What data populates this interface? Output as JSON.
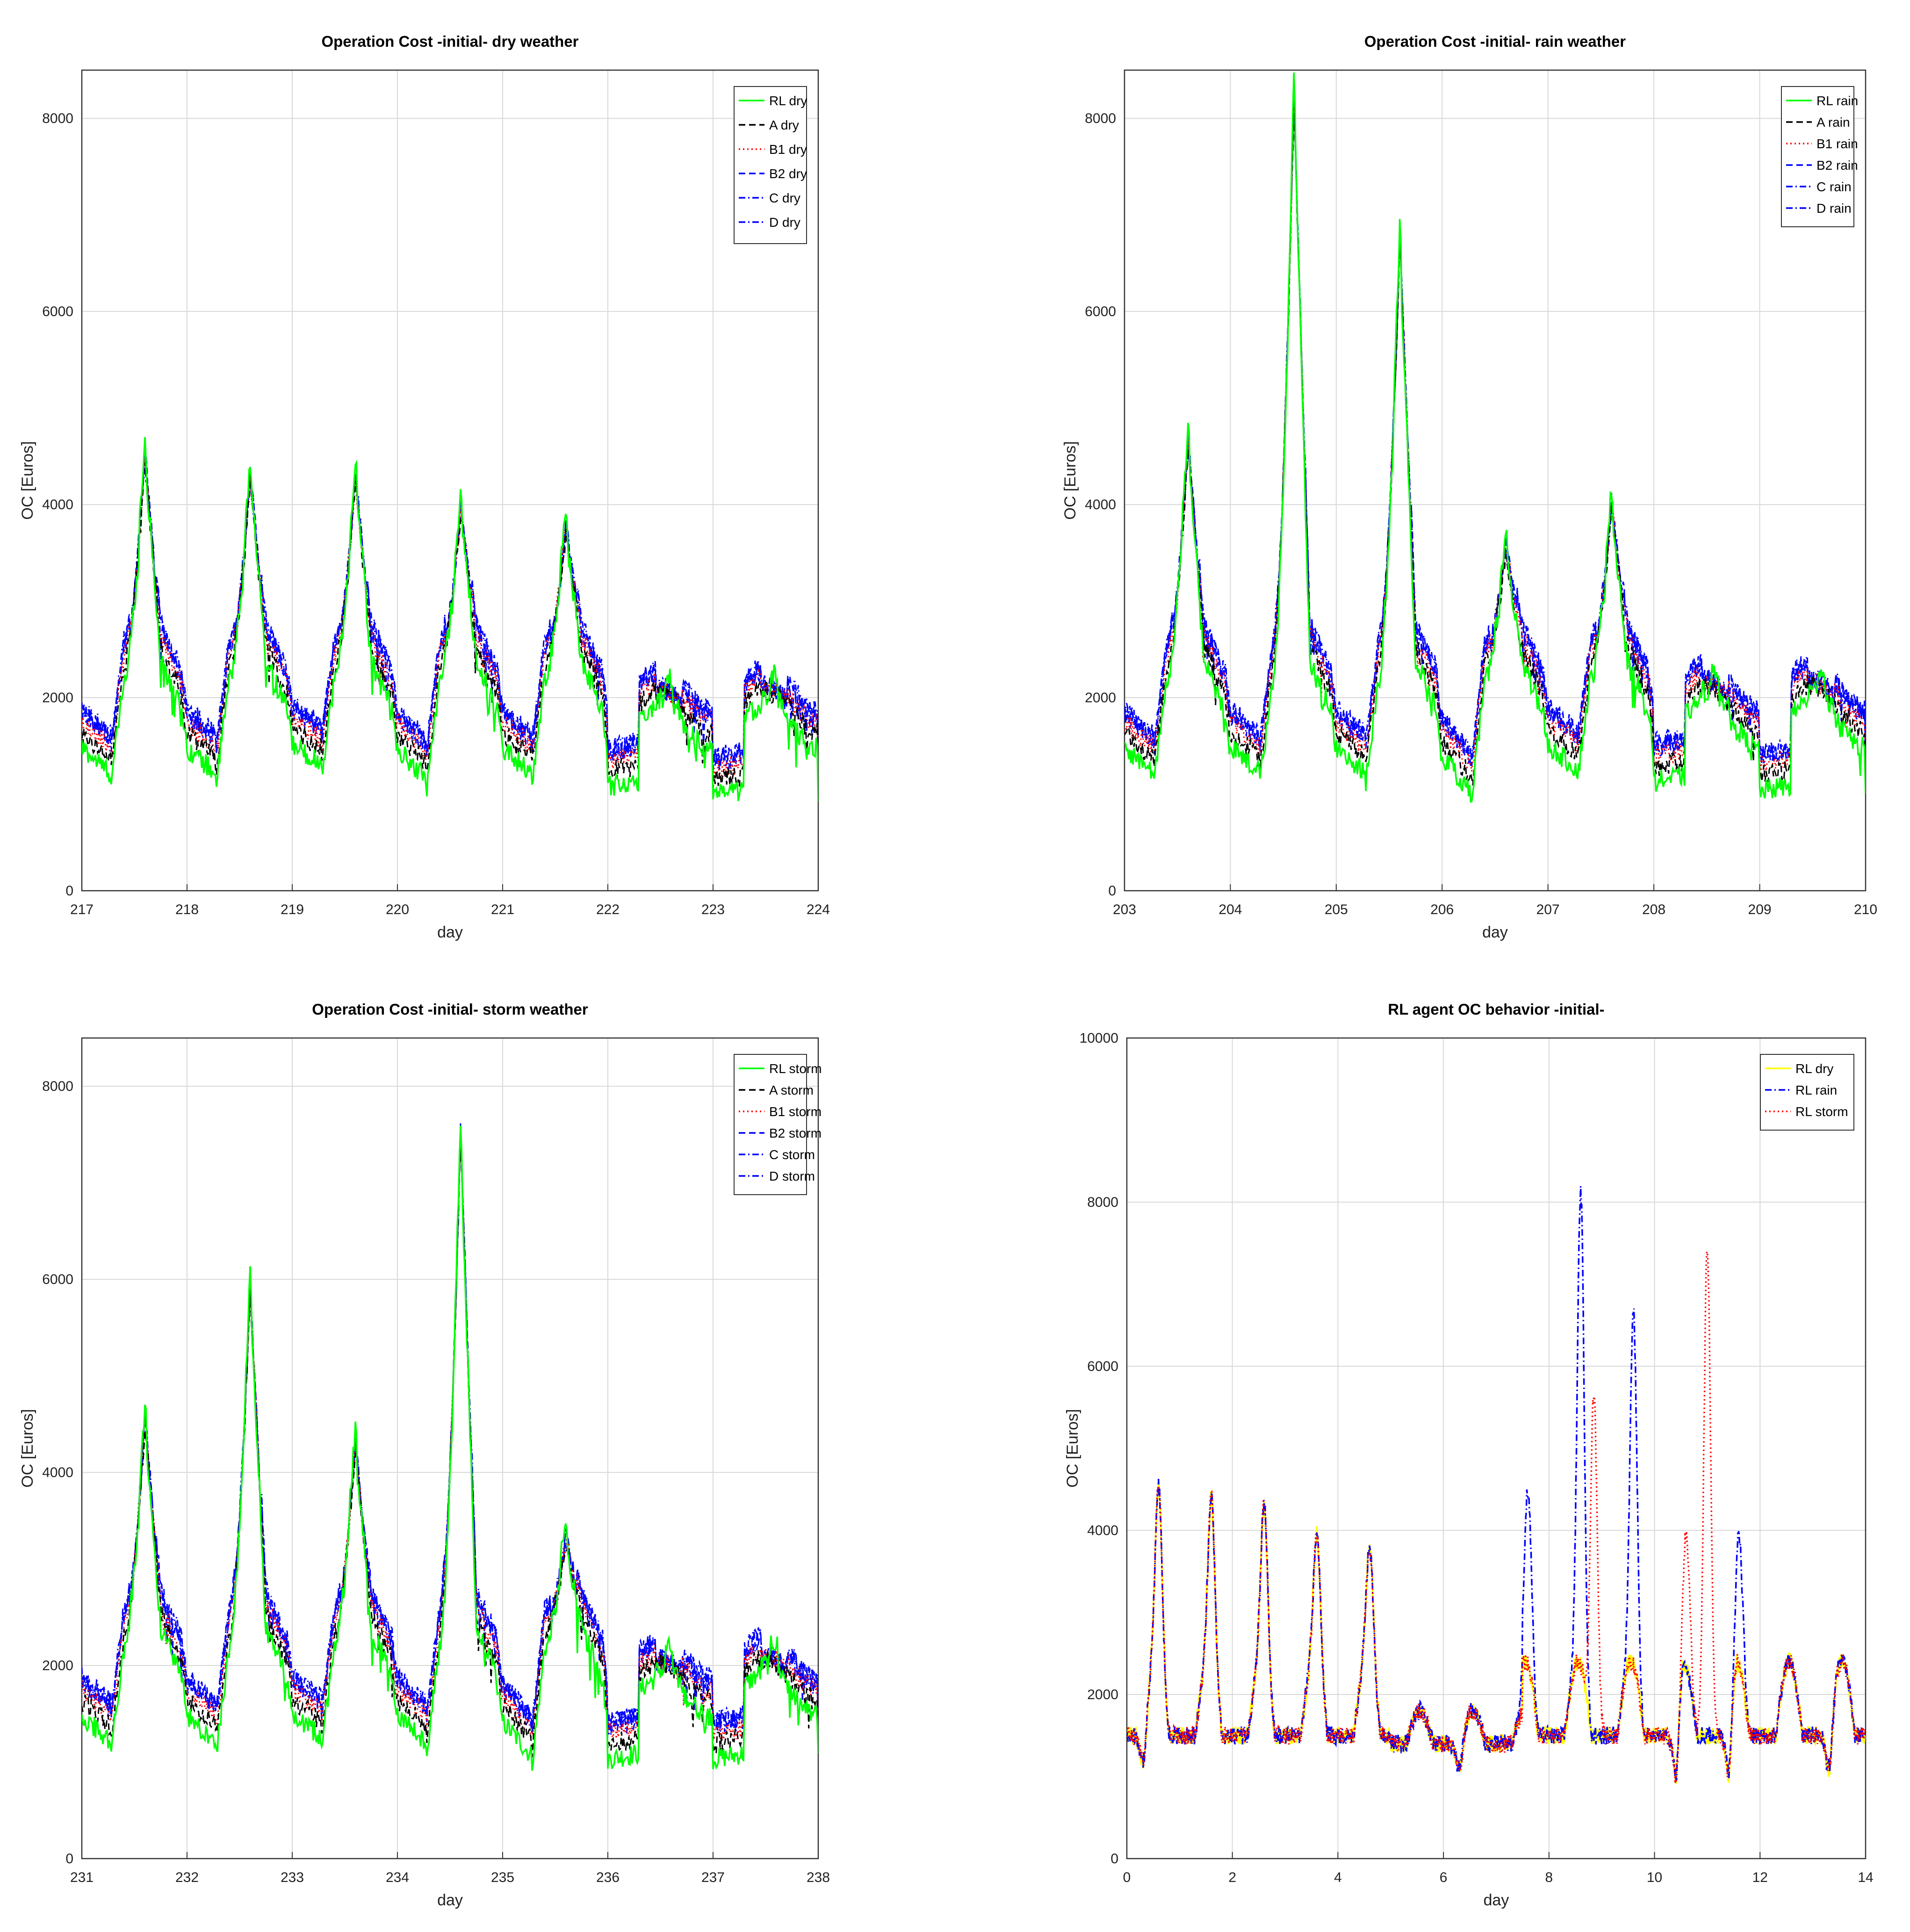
{
  "figure_background": "#ffffff",
  "chart_data": [
    {
      "type": "line",
      "title": "Operation Cost -initial- dry weather",
      "xlabel": "day",
      "ylabel": "OC [Euros]",
      "xlim": [
        217,
        224
      ],
      "ylim": [
        0,
        8500
      ],
      "xticks": [
        217,
        218,
        219,
        220,
        221,
        222,
        223,
        224
      ],
      "yticks": [
        0,
        2000,
        4000,
        6000,
        8000
      ],
      "grid": true,
      "legend_position": "top-right",
      "series": [
        {
          "name": "RL dry",
          "color": "#00ff00",
          "dash": "solid"
        },
        {
          "name": "A dry",
          "color": "#000000",
          "dash": "dashed"
        },
        {
          "name": "B1 dry",
          "color": "#ff0000",
          "dash": "dotted"
        },
        {
          "name": "B2 dry",
          "color": "#0000ff",
          "dash": "dashed"
        },
        {
          "name": "C dry",
          "color": "#0000ff",
          "dash": "dashdot"
        },
        {
          "name": "D dry",
          "color": "#0000ff",
          "dash": "dashdot"
        }
      ],
      "daily_peaks": [
        4450,
        4250,
        4250,
        3900,
        3700,
        2300,
        2350
      ],
      "daily_mins": [
        1250,
        1250,
        1350,
        1200,
        1250,
        1200,
        1100
      ]
    },
    {
      "type": "line",
      "title": "Operation Cost -initial- rain weather",
      "xlabel": "day",
      "ylabel": "OC [Euros]",
      "xlim": [
        203,
        210
      ],
      "ylim": [
        0,
        8500
      ],
      "xticks": [
        203,
        204,
        205,
        206,
        207,
        208,
        209,
        210
      ],
      "yticks": [
        0,
        2000,
        4000,
        6000,
        8000
      ],
      "grid": true,
      "legend_position": "top-right",
      "series": [
        {
          "name": "RL rain",
          "color": "#00ff00",
          "dash": "solid"
        },
        {
          "name": "A rain",
          "color": "#000000",
          "dash": "dashed"
        },
        {
          "name": "B1 rain",
          "color": "#ff0000",
          "dash": "dotted"
        },
        {
          "name": "B2 rain",
          "color": "#0000ff",
          "dash": "dashed"
        },
        {
          "name": "C rain",
          "color": "#0000ff",
          "dash": "dashdot"
        },
        {
          "name": "D rain",
          "color": "#0000ff",
          "dash": "dashdot"
        }
      ],
      "daily_peaks": [
        4600,
        8200,
        6700,
        3500,
        3950,
        2450,
        2450
      ],
      "daily_mins": [
        1250,
        1250,
        1250,
        1050,
        1300,
        1250,
        1150
      ]
    },
    {
      "type": "line",
      "title": "Operation Cost -initial- storm weather",
      "xlabel": "day",
      "ylabel": "OC [Euros]",
      "xlim": [
        231,
        238
      ],
      "ylim": [
        0,
        8500
      ],
      "xticks": [
        231,
        232,
        233,
        234,
        235,
        236,
        237,
        238
      ],
      "yticks": [
        0,
        2000,
        4000,
        6000,
        8000
      ],
      "grid": true,
      "legend_position": "top-right",
      "series": [
        {
          "name": "RL storm",
          "color": "#00ff00",
          "dash": "solid"
        },
        {
          "name": "A storm",
          "color": "#000000",
          "dash": "dashed"
        },
        {
          "name": "B1 storm",
          "color": "#ff0000",
          "dash": "dotted"
        },
        {
          "name": "B2 storm",
          "color": "#0000ff",
          "dash": "dashed"
        },
        {
          "name": "C storm",
          "color": "#0000ff",
          "dash": "dashdot"
        },
        {
          "name": "D storm",
          "color": "#0000ff",
          "dash": "dashdot"
        }
      ],
      "daily_peaks": [
        4500,
        5850,
        4250,
        7450,
        3250,
        2250,
        2350
      ],
      "daily_mins": [
        1250,
        1250,
        1300,
        1250,
        1100,
        1150,
        1150
      ]
    },
    {
      "type": "line",
      "title": "RL agent OC behavior -initial-",
      "xlabel": "day",
      "ylabel": "OC [Euros]",
      "xlim": [
        0,
        14
      ],
      "ylim": [
        0,
        10000
      ],
      "xticks": [
        0,
        2,
        4,
        6,
        8,
        10,
        12,
        14
      ],
      "yticks": [
        0,
        2000,
        4000,
        6000,
        8000,
        10000
      ],
      "grid": true,
      "legend_position": "top-right",
      "series": [
        {
          "name": "RL dry",
          "color": "#ffff00",
          "dash": "solid"
        },
        {
          "name": "RL rain",
          "color": "#0000ff",
          "dash": "dashdot"
        },
        {
          "name": "RL storm",
          "color": "#ff0000",
          "dash": "dotted"
        }
      ],
      "peak_points": [
        {
          "series": "RL dry",
          "x": 0.6,
          "y": 4550
        },
        {
          "series": "RL dry",
          "x": 1.6,
          "y": 4400
        },
        {
          "series": "RL dry",
          "x": 2.6,
          "y": 4300
        },
        {
          "series": "RL dry",
          "x": 3.6,
          "y": 3950
        },
        {
          "series": "RL dry",
          "x": 4.6,
          "y": 3800
        },
        {
          "series": "RL rain",
          "x": 7.6,
          "y": 4500
        },
        {
          "series": "RL rain",
          "x": 8.6,
          "y": 8150
        },
        {
          "series": "RL storm",
          "x": 8.85,
          "y": 5700
        },
        {
          "series": "RL rain",
          "x": 9.6,
          "y": 6700
        },
        {
          "series": "RL storm",
          "x": 10.6,
          "y": 3950
        },
        {
          "series": "RL storm",
          "x": 11.0,
          "y": 7450
        },
        {
          "series": "RL rain",
          "x": 11.6,
          "y": 3950
        }
      ],
      "min_points": [
        {
          "x": 0.3,
          "y": 1200
        },
        {
          "x": 6.3,
          "y": 1100
        },
        {
          "x": 10.4,
          "y": 1000
        },
        {
          "x": 11.4,
          "y": 1050
        },
        {
          "x": 13.3,
          "y": 1100
        }
      ]
    }
  ]
}
